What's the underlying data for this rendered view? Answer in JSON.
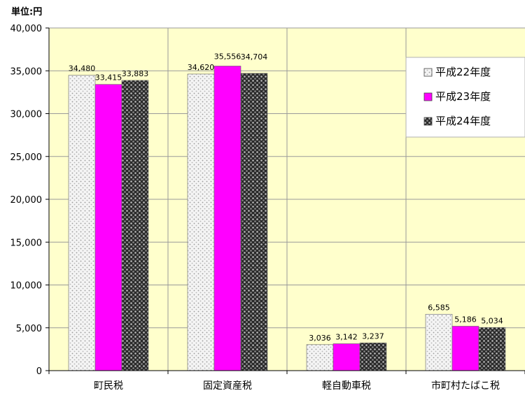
{
  "chart_data": {
    "type": "bar",
    "unit_label": "単位:円",
    "categories": [
      "町民税",
      "固定資産税",
      "軽自動車税",
      "市町村たばこ税"
    ],
    "series": [
      {
        "name": "平成22年度",
        "values": [
          34480,
          34620,
          3036,
          6585
        ],
        "data_labels": [
          "34,480",
          "34,620",
          "3,036",
          "6,585"
        ],
        "color": "#f2f2f2",
        "pattern": "light-dotted"
      },
      {
        "name": "平成23年度",
        "values": [
          33415,
          35556,
          3142,
          5186
        ],
        "data_labels": [
          "33,415",
          "35,556",
          "3,142",
          "5,186"
        ],
        "color": "#ff00ff",
        "pattern": "solid"
      },
      {
        "name": "平成24年度",
        "values": [
          33883,
          34704,
          3237,
          5034
        ],
        "data_labels": [
          "33,883",
          "34,704",
          "3,237",
          "5,034"
        ],
        "color": "#222222",
        "pattern": "dark-checker"
      }
    ],
    "ylim": [
      0,
      40000
    ],
    "y_ticks": [
      0,
      5000,
      10000,
      15000,
      20000,
      25000,
      30000,
      35000,
      40000
    ],
    "y_tick_labels": [
      "0",
      "5,000",
      "10,000",
      "15,000",
      "20,000",
      "25,000",
      "30,000",
      "35,000",
      "40,000"
    ],
    "plot_background": "#ffffcc",
    "grid": true,
    "legend_position": "top-right"
  }
}
